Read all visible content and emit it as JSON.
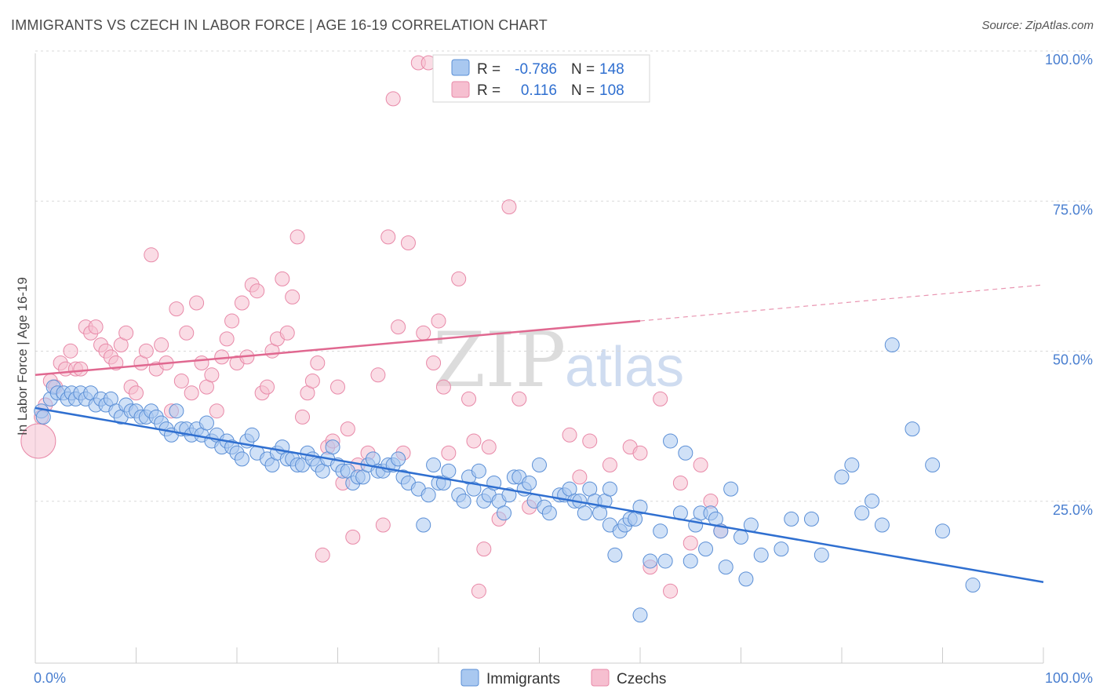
{
  "title": "IMMIGRANTS VS CZECH IN LABOR FORCE | AGE 16-19 CORRELATION CHART",
  "source": "Source: ZipAtlas.com",
  "watermark": {
    "zip": "ZIP",
    "atlas": "atlas"
  },
  "colors": {
    "immigrants_fill": "#a9c8f0",
    "immigrants_stroke": "#5b8fd6",
    "immigrants_line": "#2f6fd0",
    "czechs_fill": "#f6bfd0",
    "czechs_stroke": "#e889a8",
    "czechs_line": "#e06890",
    "tick_label": "#4a7fd0",
    "grid": "#d9d9d9"
  },
  "legend_top": {
    "rows": [
      {
        "r_label": "R = ",
        "r_value": "-0.786",
        "n_label": "N = ",
        "n_value": "148"
      },
      {
        "r_label": "R = ",
        "r_value": "0.116",
        "n_label": "N = ",
        "n_value": "108"
      }
    ]
  },
  "legend_bottom": {
    "immigrants": "Immigrants",
    "czechs": "Czechs"
  },
  "chart_data": {
    "type": "scatter",
    "title": "IMMIGRANTS VS CZECH IN LABOR FORCE | AGE 16-19 CORRELATION CHART",
    "xlabel": "",
    "ylabel": "In Labor Force | Age 16-19",
    "xlim": [
      0,
      100
    ],
    "ylim": [
      0,
      100
    ],
    "x_tick_labels": [
      "0.0%",
      "100.0%"
    ],
    "y_ticks": [
      25,
      50,
      75,
      100
    ],
    "y_tick_labels": [
      "25.0%",
      "50.0%",
      "75.0%",
      "100.0%"
    ],
    "grid": true,
    "legend_placement": "top-center",
    "series": [
      {
        "name": "Immigrants",
        "r": -0.786,
        "n": 148,
        "trend": {
          "x": [
            0,
            100
          ],
          "y": [
            42.5,
            13.5
          ]
        },
        "points": [
          [
            0.6,
            42
          ],
          [
            0.8,
            41
          ],
          [
            1.5,
            44
          ],
          [
            1.8,
            46
          ],
          [
            2.2,
            45
          ],
          [
            2.8,
            45
          ],
          [
            3.2,
            44
          ],
          [
            3.6,
            45
          ],
          [
            4,
            44
          ],
          [
            4.5,
            45
          ],
          [
            5,
            44
          ],
          [
            5.5,
            45
          ],
          [
            6,
            43
          ],
          [
            6.5,
            44
          ],
          [
            7,
            43
          ],
          [
            7.5,
            44
          ],
          [
            8,
            42
          ],
          [
            8.5,
            41
          ],
          [
            9,
            43
          ],
          [
            9.5,
            42
          ],
          [
            10,
            42
          ],
          [
            10.5,
            41
          ],
          [
            11,
            41
          ],
          [
            11.5,
            42
          ],
          [
            12,
            41
          ],
          [
            12.5,
            40
          ],
          [
            13,
            39
          ],
          [
            13.5,
            38
          ],
          [
            14,
            42
          ],
          [
            14.5,
            39
          ],
          [
            15,
            39
          ],
          [
            15.5,
            38
          ],
          [
            16,
            39
          ],
          [
            16.5,
            38
          ],
          [
            17,
            40
          ],
          [
            17.5,
            37
          ],
          [
            18,
            38
          ],
          [
            18.5,
            36
          ],
          [
            19,
            37
          ],
          [
            19.5,
            36
          ],
          [
            20,
            35
          ],
          [
            20.5,
            34
          ],
          [
            21,
            37
          ],
          [
            21.5,
            38
          ],
          [
            22,
            35
          ],
          [
            23,
            34
          ],
          [
            23.5,
            33
          ],
          [
            24,
            35
          ],
          [
            24.5,
            36
          ],
          [
            25,
            34
          ],
          [
            25.5,
            34
          ],
          [
            26,
            33
          ],
          [
            26.5,
            33
          ],
          [
            27,
            35
          ],
          [
            27.5,
            34
          ],
          [
            28,
            33
          ],
          [
            28.5,
            32
          ],
          [
            29,
            34
          ],
          [
            29.5,
            36
          ],
          [
            30,
            33
          ],
          [
            30.5,
            32
          ],
          [
            31,
            32
          ],
          [
            31.5,
            30
          ],
          [
            32,
            31
          ],
          [
            32.5,
            31
          ],
          [
            33,
            33
          ],
          [
            33.5,
            34
          ],
          [
            34,
            32
          ],
          [
            34.5,
            32
          ],
          [
            35,
            33
          ],
          [
            35.5,
            33
          ],
          [
            36,
            34
          ],
          [
            36.5,
            31
          ],
          [
            37,
            30
          ],
          [
            38,
            29
          ],
          [
            38.5,
            23
          ],
          [
            39,
            28
          ],
          [
            39.5,
            33
          ],
          [
            40,
            30
          ],
          [
            40.5,
            30
          ],
          [
            41,
            32
          ],
          [
            42,
            28
          ],
          [
            42.5,
            27
          ],
          [
            43,
            31
          ],
          [
            43.5,
            29
          ],
          [
            44,
            32
          ],
          [
            44.5,
            27
          ],
          [
            45,
            28
          ],
          [
            45.5,
            30
          ],
          [
            46,
            27
          ],
          [
            46.5,
            25
          ],
          [
            47,
            28
          ],
          [
            47.5,
            31
          ],
          [
            48,
            31
          ],
          [
            48.5,
            29
          ],
          [
            49,
            30
          ],
          [
            49.5,
            27
          ],
          [
            50,
            33
          ],
          [
            50.5,
            26
          ],
          [
            51,
            25
          ],
          [
            52,
            28
          ],
          [
            52.5,
            28
          ],
          [
            53,
            29
          ],
          [
            53.5,
            27
          ],
          [
            54,
            27
          ],
          [
            54.5,
            25
          ],
          [
            55,
            29
          ],
          [
            55.5,
            27
          ],
          [
            56,
            25
          ],
          [
            56.5,
            27
          ],
          [
            57,
            23
          ],
          [
            57.5,
            18
          ],
          [
            58,
            22
          ],
          [
            58.5,
            23
          ],
          [
            59,
            24
          ],
          [
            59.5,
            24
          ],
          [
            60,
            26
          ],
          [
            61,
            17
          ],
          [
            62,
            22
          ],
          [
            62.5,
            17
          ],
          [
            63,
            37
          ],
          [
            64,
            25
          ],
          [
            64.5,
            35
          ],
          [
            65,
            17
          ],
          [
            65.5,
            23
          ],
          [
            66,
            25
          ],
          [
            66.5,
            19
          ],
          [
            67,
            25
          ],
          [
            67.5,
            24
          ],
          [
            68,
            22
          ],
          [
            68.5,
            16
          ],
          [
            69,
            29
          ],
          [
            70,
            21
          ],
          [
            70.5,
            14
          ],
          [
            71,
            23
          ],
          [
            72,
            18
          ],
          [
            74,
            19
          ],
          [
            75,
            24
          ],
          [
            77,
            24
          ],
          [
            78,
            18
          ],
          [
            80,
            31
          ],
          [
            81,
            33
          ],
          [
            82,
            25
          ],
          [
            83,
            27
          ],
          [
            84,
            23
          ],
          [
            85,
            53
          ],
          [
            87,
            39
          ],
          [
            89,
            33
          ],
          [
            90,
            22
          ],
          [
            93,
            13
          ],
          [
            60,
            8
          ],
          [
            57,
            29
          ]
        ]
      },
      {
        "name": "Czechs",
        "r": 0.116,
        "n": 108,
        "trend": {
          "x": [
            0,
            60
          ],
          "y": [
            48,
            57
          ]
        },
        "trend_dashed": {
          "x": [
            60,
            100
          ],
          "y": [
            57,
            63
          ]
        },
        "points": [
          [
            0.3,
            37
          ],
          [
            0.6,
            41
          ],
          [
            1,
            43
          ],
          [
            1.5,
            47
          ],
          [
            2,
            46
          ],
          [
            2.5,
            50
          ],
          [
            3,
            49
          ],
          [
            3.5,
            52
          ],
          [
            4,
            49
          ],
          [
            4.5,
            49
          ],
          [
            5,
            56
          ],
          [
            5.5,
            55
          ],
          [
            6,
            56
          ],
          [
            6.5,
            53
          ],
          [
            7,
            52
          ],
          [
            7.5,
            51
          ],
          [
            8,
            50
          ],
          [
            8.5,
            53
          ],
          [
            9,
            55
          ],
          [
            9.5,
            46
          ],
          [
            10,
            45
          ],
          [
            10.5,
            50
          ],
          [
            11,
            52
          ],
          [
            11.5,
            68
          ],
          [
            12,
            49
          ],
          [
            12.5,
            53
          ],
          [
            13,
            50
          ],
          [
            13.5,
            42
          ],
          [
            14,
            59
          ],
          [
            14.5,
            47
          ],
          [
            15,
            55
          ],
          [
            15.5,
            45
          ],
          [
            16,
            60
          ],
          [
            16.5,
            50
          ],
          [
            17,
            46
          ],
          [
            17.5,
            48
          ],
          [
            18,
            42
          ],
          [
            18.5,
            51
          ],
          [
            19,
            54
          ],
          [
            19.5,
            57
          ],
          [
            20,
            50
          ],
          [
            20.5,
            60
          ],
          [
            21,
            51
          ],
          [
            21.5,
            63
          ],
          [
            22,
            62
          ],
          [
            22.5,
            45
          ],
          [
            23,
            46
          ],
          [
            23.5,
            52
          ],
          [
            24,
            54
          ],
          [
            24.5,
            64
          ],
          [
            25,
            55
          ],
          [
            25.5,
            61
          ],
          [
            26,
            71
          ],
          [
            26.5,
            41
          ],
          [
            27,
            45
          ],
          [
            27.5,
            47
          ],
          [
            28,
            50
          ],
          [
            28.5,
            18
          ],
          [
            29,
            36
          ],
          [
            29.5,
            37
          ],
          [
            30,
            46
          ],
          [
            30.5,
            30
          ],
          [
            31,
            39
          ],
          [
            31.5,
            21
          ],
          [
            32,
            33
          ],
          [
            33,
            35
          ],
          [
            34,
            48
          ],
          [
            34.5,
            23
          ],
          [
            35,
            71
          ],
          [
            35.5,
            94
          ],
          [
            36,
            56
          ],
          [
            36.5,
            35
          ],
          [
            37,
            70
          ],
          [
            38,
            100
          ],
          [
            38.5,
            55
          ],
          [
            39,
            100
          ],
          [
            39.5,
            50
          ],
          [
            40,
            57
          ],
          [
            40.5,
            46
          ],
          [
            41,
            35
          ],
          [
            42,
            64
          ],
          [
            43,
            44
          ],
          [
            43.5,
            37
          ],
          [
            44,
            12
          ],
          [
            44.5,
            19
          ],
          [
            45,
            36
          ],
          [
            46,
            24
          ],
          [
            47,
            76
          ],
          [
            48,
            44
          ],
          [
            49,
            26
          ],
          [
            50,
            100
          ],
          [
            51,
            100
          ],
          [
            52,
            100
          ],
          [
            52.5,
            100
          ],
          [
            53,
            38
          ],
          [
            54,
            31
          ],
          [
            55,
            37
          ],
          [
            57,
            33
          ],
          [
            59,
            36
          ],
          [
            60,
            35
          ],
          [
            61,
            16
          ],
          [
            62,
            44
          ],
          [
            63,
            12
          ],
          [
            64,
            30
          ],
          [
            65,
            20
          ],
          [
            66,
            33
          ],
          [
            67,
            27
          ],
          [
            68,
            22
          ]
        ]
      }
    ]
  }
}
